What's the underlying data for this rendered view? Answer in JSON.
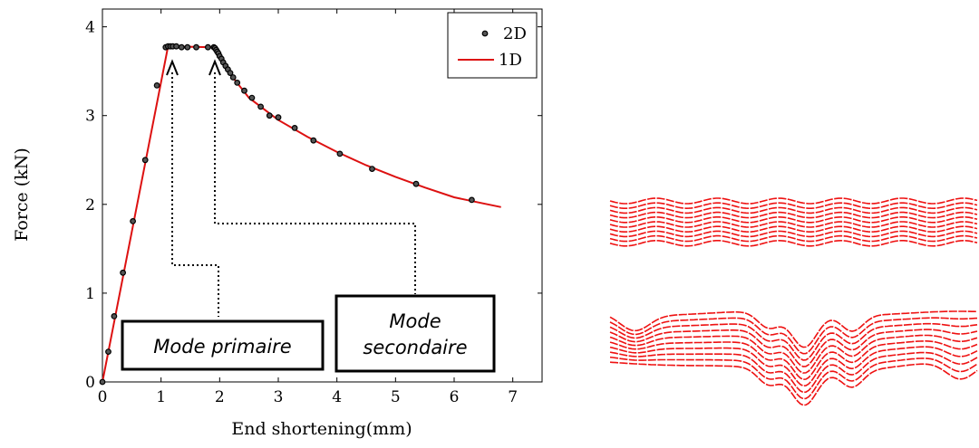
{
  "chart_data": {
    "type": "line",
    "xlabel": "End shortening(mm)",
    "ylabel": "Force (kN)",
    "xlim": [
      0,
      7.5
    ],
    "ylim": [
      0,
      4.2
    ],
    "x_ticks": [
      "0",
      "1",
      "2",
      "3",
      "4",
      "5",
      "6",
      "7"
    ],
    "y_ticks": [
      "0",
      "1",
      "2",
      "3",
      "4"
    ],
    "grid": false,
    "legend_position": "top-right",
    "series": [
      {
        "name": "2D",
        "kind": "markers",
        "x": [
          0.0,
          0.1,
          0.2,
          0.35,
          0.52,
          0.73,
          0.93,
          1.08,
          1.12,
          1.16,
          1.2,
          1.26,
          1.35,
          1.45,
          1.6,
          1.8,
          1.9,
          1.92,
          1.94,
          1.96,
          1.98,
          2.0,
          2.03,
          2.06,
          2.1,
          2.14,
          2.18,
          2.23,
          2.3,
          2.42,
          2.55,
          2.7,
          2.85,
          3.0,
          3.28,
          3.6,
          4.05,
          4.6,
          5.35,
          6.3
        ],
        "y": [
          0.0,
          0.34,
          0.74,
          1.23,
          1.81,
          2.5,
          3.34,
          3.77,
          3.78,
          3.78,
          3.78,
          3.78,
          3.77,
          3.77,
          3.77,
          3.77,
          3.77,
          3.76,
          3.74,
          3.72,
          3.7,
          3.67,
          3.64,
          3.6,
          3.56,
          3.52,
          3.48,
          3.43,
          3.37,
          3.28,
          3.2,
          3.1,
          3.0,
          2.98,
          2.86,
          2.72,
          2.57,
          2.4,
          2.23,
          2.05
        ]
      },
      {
        "name": "1D",
        "kind": "line",
        "color": "#dd1111",
        "x": [
          0.0,
          1.12,
          1.9,
          2.0,
          2.2,
          2.5,
          3.0,
          3.5,
          4.0,
          4.5,
          5.0,
          5.5,
          6.0,
          6.5,
          6.8
        ],
        "y": [
          0.0,
          3.78,
          3.77,
          3.66,
          3.45,
          3.2,
          2.95,
          2.76,
          2.59,
          2.44,
          2.31,
          2.19,
          2.08,
          2.01,
          1.97
        ]
      }
    ],
    "annotations": {
      "mode_primaire": "Mode primaire",
      "mode_secondaire_line1": "Mode",
      "mode_secondaire_line2": "secondaire"
    }
  },
  "colors": {
    "curve": "#dd1111",
    "marker_stroke": "#000000",
    "marker_fill": "#555555",
    "mesh": "#ee1111"
  }
}
